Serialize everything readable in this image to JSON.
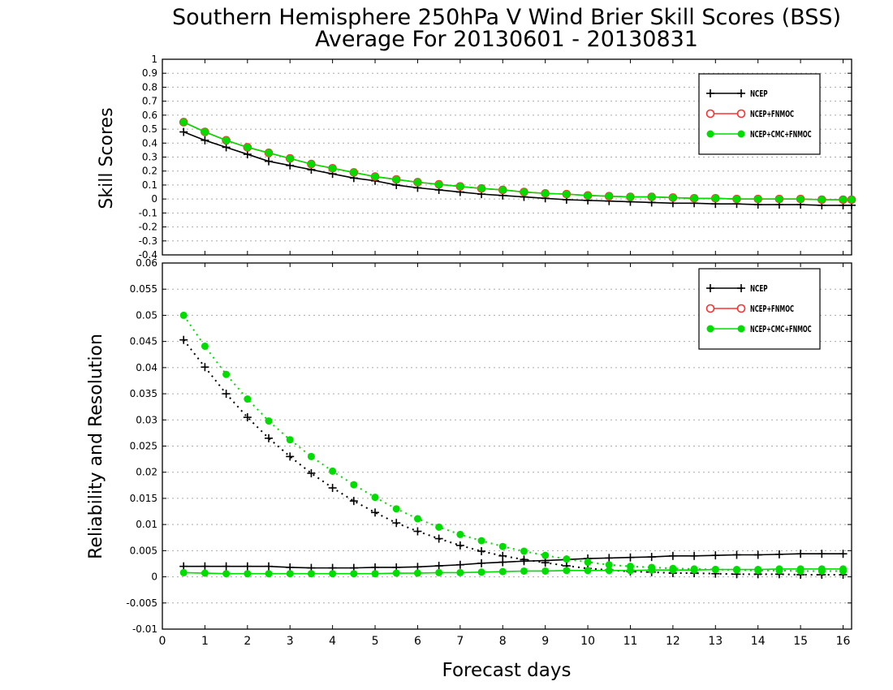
{
  "chart_data": [
    {
      "type": "line",
      "title": "Southern Hemisphere 250hPa V Wind Brier Skill Scores (BSS)",
      "subtitle": "Average For 20130601 - 20130831",
      "xlabel": "",
      "ylabel": "Skill Scores",
      "xlim": [
        0,
        16.2
      ],
      "ylim": [
        -0.4,
        1.0
      ],
      "grid": true,
      "legend_position": "top-right",
      "y_ticks": [
        "1",
        "0.9",
        "0.8",
        "0.7",
        "0.6",
        "0.5",
        "0.4",
        "0.3",
        "0.2",
        "0.1",
        "0",
        "-0.1",
        "-0.2",
        "-0.3",
        "-0.4"
      ],
      "x": [
        0.5,
        1,
        1.5,
        2,
        2.5,
        3,
        3.5,
        4,
        4.5,
        5,
        5.5,
        6,
        6.5,
        7,
        7.5,
        8,
        8.5,
        9,
        9.5,
        10,
        10.5,
        11,
        11.5,
        12,
        12.5,
        13,
        13.5,
        14,
        14.5,
        15,
        15.5,
        16,
        16.2
      ],
      "series": [
        {
          "name": "NCEP",
          "color": "#000000",
          "marker": "plus",
          "values": [
            0.48,
            0.42,
            0.37,
            0.32,
            0.27,
            0.24,
            0.21,
            0.18,
            0.15,
            0.13,
            0.1,
            0.08,
            0.065,
            0.05,
            0.035,
            0.025,
            0.015,
            0.005,
            -0.005,
            -0.01,
            -0.015,
            -0.02,
            -0.025,
            -0.03,
            -0.03,
            -0.035,
            -0.035,
            -0.04,
            -0.04,
            -0.04,
            -0.045,
            -0.045,
            -0.045
          ]
        },
        {
          "name": "NCEP+FNMOC",
          "color": "#ff3030",
          "marker": "open-circle",
          "values": [
            0.55,
            0.48,
            0.42,
            0.37,
            0.33,
            0.29,
            0.25,
            0.22,
            0.19,
            0.16,
            0.14,
            0.12,
            0.105,
            0.09,
            0.075,
            0.065,
            0.05,
            0.04,
            0.035,
            0.025,
            0.02,
            0.015,
            0.015,
            0.01,
            0.005,
            0.005,
            0.0,
            0.0,
            0.0,
            0.0,
            -0.005,
            -0.005,
            -0.005
          ]
        },
        {
          "name": "NCEP+CMC+FNMOC",
          "color": "#00dd00",
          "marker": "filled-circle",
          "values": [
            0.55,
            0.48,
            0.42,
            0.37,
            0.33,
            0.29,
            0.25,
            0.22,
            0.19,
            0.16,
            0.14,
            0.12,
            0.105,
            0.09,
            0.075,
            0.065,
            0.05,
            0.04,
            0.035,
            0.025,
            0.02,
            0.015,
            0.015,
            0.01,
            0.005,
            0.005,
            0.0,
            0.0,
            0.0,
            0.0,
            -0.005,
            -0.005,
            -0.005
          ]
        }
      ]
    },
    {
      "type": "line",
      "title": "",
      "xlabel": "Forecast days",
      "ylabel": "Reliability and Resolution",
      "xlim": [
        0,
        16.2
      ],
      "ylim": [
        -0.01,
        0.06
      ],
      "grid": true,
      "legend_position": "top-right",
      "x_ticks": [
        "0",
        "1",
        "2",
        "3",
        "4",
        "5",
        "6",
        "7",
        "8",
        "9",
        "10",
        "11",
        "12",
        "13",
        "14",
        "15",
        "16"
      ],
      "y_ticks": [
        "0.06",
        "0.055",
        "0.05",
        "0.045",
        "0.04",
        "0.035",
        "0.03",
        "0.025",
        "0.02",
        "0.015",
        "0.01",
        "0.005",
        "0",
        "-0.005",
        "-0.01"
      ],
      "x": [
        0.5,
        1,
        1.5,
        2,
        2.5,
        3,
        3.5,
        4,
        4.5,
        5,
        5.5,
        6,
        6.5,
        7,
        7.5,
        8,
        8.5,
        9,
        9.5,
        10,
        10.5,
        11,
        11.5,
        12,
        12.5,
        13,
        13.5,
        14,
        14.5,
        15,
        15.5,
        16
      ],
      "legend": [
        {
          "name": "NCEP",
          "color": "#000000",
          "marker": "plus"
        },
        {
          "name": "NCEP+FNMOC",
          "color": "#ff3030",
          "marker": "open-circle"
        },
        {
          "name": "NCEP+CMC+FNMOC",
          "color": "#00dd00",
          "marker": "filled-circle"
        }
      ],
      "series": [
        {
          "name": "NCEP resolution",
          "color": "#000000",
          "marker": "plus",
          "style": "dotted",
          "values": [
            0.0453,
            0.0401,
            0.035,
            0.0305,
            0.0265,
            0.023,
            0.0198,
            0.017,
            0.0145,
            0.0123,
            0.0103,
            0.0087,
            0.0073,
            0.006,
            0.0049,
            0.004,
            0.0033,
            0.0027,
            0.0021,
            0.0016,
            0.0013,
            0.001,
            0.0009,
            0.0007,
            0.0007,
            0.0006,
            0.0005,
            0.0005,
            0.0005,
            0.0004,
            0.0004,
            0.0004
          ]
        },
        {
          "name": "NCEP reliability",
          "color": "#000000",
          "marker": "plus",
          "style": "solid",
          "values": [
            0.002,
            0.002,
            0.002,
            0.002,
            0.002,
            0.0018,
            0.0017,
            0.0017,
            0.0017,
            0.0018,
            0.0018,
            0.0019,
            0.0021,
            0.0023,
            0.0026,
            0.0028,
            0.003,
            0.0031,
            0.0033,
            0.0035,
            0.0036,
            0.0037,
            0.0038,
            0.004,
            0.004,
            0.0041,
            0.0042,
            0.0042,
            0.0043,
            0.0044,
            0.0044,
            0.0044
          ]
        },
        {
          "name": "NCEP+CMC+FNMOC resolution",
          "color": "#00dd00",
          "marker": "filled-circle",
          "style": "dotted",
          "values": [
            0.05,
            0.0441,
            0.0387,
            0.034,
            0.0298,
            0.0262,
            0.023,
            0.0202,
            0.0176,
            0.0152,
            0.013,
            0.0111,
            0.0095,
            0.0081,
            0.0069,
            0.0058,
            0.0049,
            0.0041,
            0.0034,
            0.0028,
            0.0023,
            0.002,
            0.0018,
            0.0016,
            0.0015,
            0.0014,
            0.0013,
            0.0012,
            0.0012,
            0.0011,
            0.0011,
            0.0011
          ]
        },
        {
          "name": "NCEP+CMC+FNMOC reliability",
          "color": "#00dd00",
          "marker": "filled-circle",
          "style": "solid",
          "values": [
            0.0008,
            0.0007,
            0.0006,
            0.0006,
            0.0006,
            0.0006,
            0.0006,
            0.0006,
            0.0006,
            0.0006,
            0.0007,
            0.0007,
            0.0008,
            0.0008,
            0.0009,
            0.001,
            0.0011,
            0.0011,
            0.0012,
            0.0012,
            0.0012,
            0.0012,
            0.0013,
            0.0013,
            0.0013,
            0.0014,
            0.0014,
            0.0014,
            0.0015,
            0.0015,
            0.0015,
            0.0015
          ]
        }
      ]
    }
  ]
}
